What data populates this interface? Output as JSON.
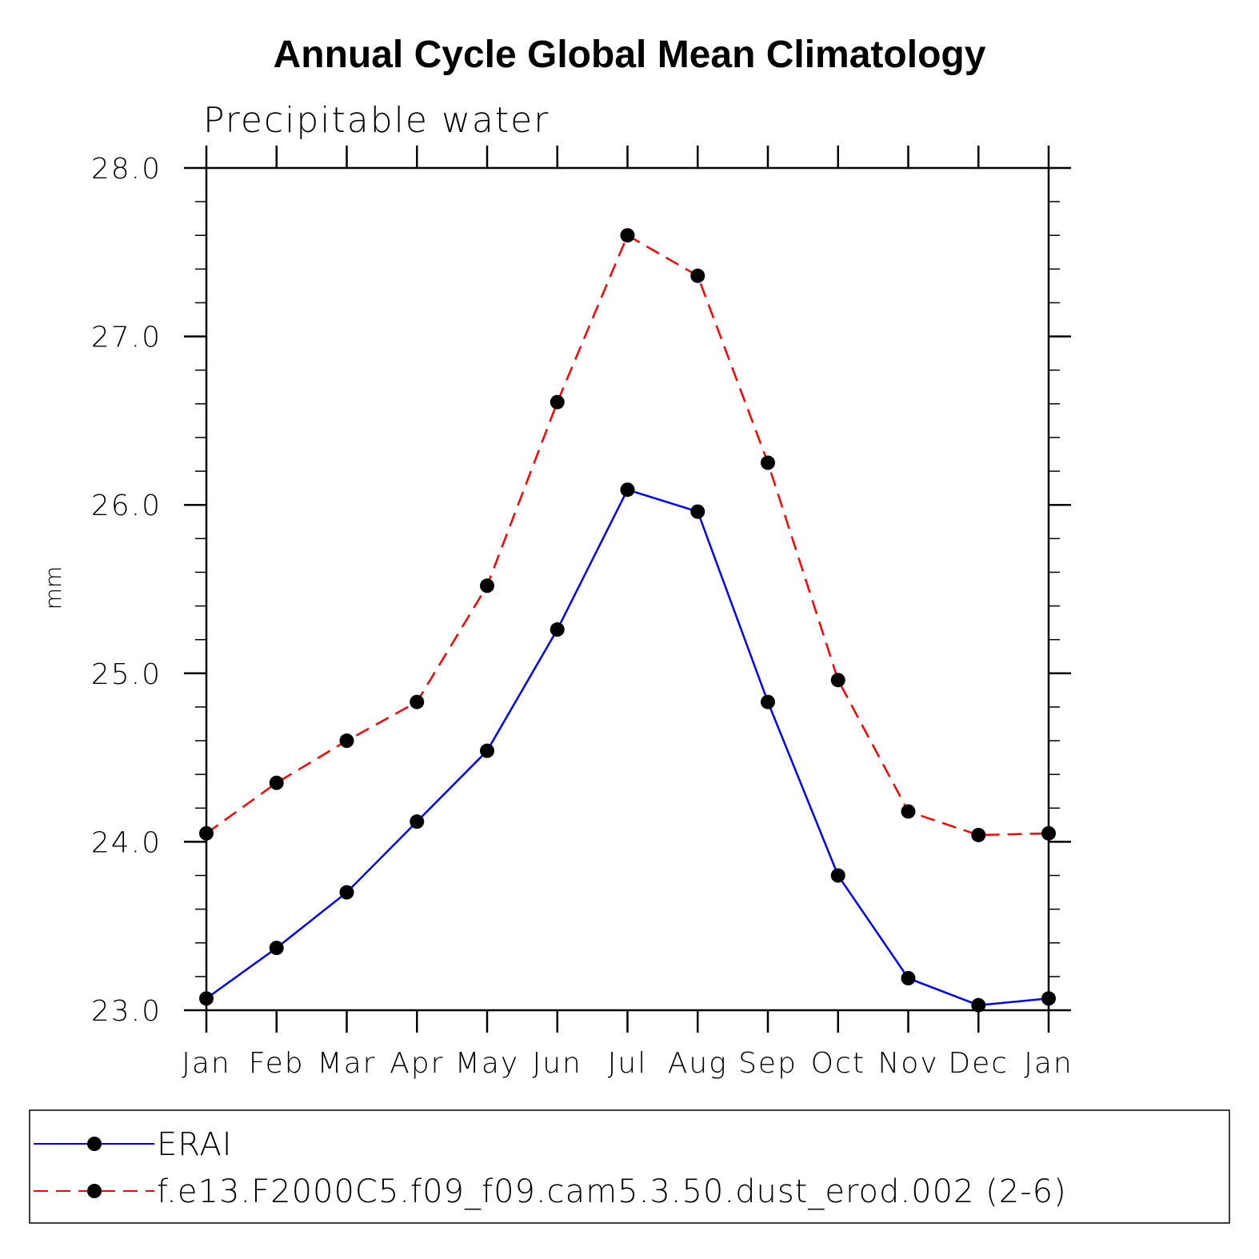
{
  "chart_data": {
    "type": "line",
    "title": "Annual Cycle Global Mean Climatology",
    "subtitle": "Precipitable water",
    "xlabel": "",
    "ylabel": "mm",
    "categories": [
      "Jan",
      "Feb",
      "Mar",
      "Apr",
      "May",
      "Jun",
      "Jul",
      "Aug",
      "Sep",
      "Oct",
      "Nov",
      "Dec",
      "Jan"
    ],
    "y_ticks": [
      "23.0",
      "24.0",
      "25.0",
      "26.0",
      "27.0",
      "28.0"
    ],
    "ylim": [
      23.0,
      28.0
    ],
    "y_minor_step": 0.2,
    "grid": false,
    "legend_position": "bottom",
    "series": [
      {
        "name": "ERAI",
        "color": "#0000ff",
        "line_style": "solid",
        "marker": "filled-circle",
        "values": [
          23.07,
          23.37,
          23.7,
          24.12,
          24.54,
          25.26,
          26.09,
          25.96,
          24.83,
          23.8,
          23.19,
          23.03,
          23.07
        ]
      },
      {
        "name": "f.e13.F2000C5.f09_f09.cam5.3.50.dust_erod.002 (2-6)",
        "color": "#ff0000",
        "line_style": "dashed",
        "marker": "filled-circle",
        "values": [
          24.05,
          24.35,
          24.6,
          24.83,
          25.52,
          26.61,
          27.6,
          27.36,
          26.25,
          24.96,
          24.18,
          24.04,
          24.05
        ]
      }
    ]
  }
}
